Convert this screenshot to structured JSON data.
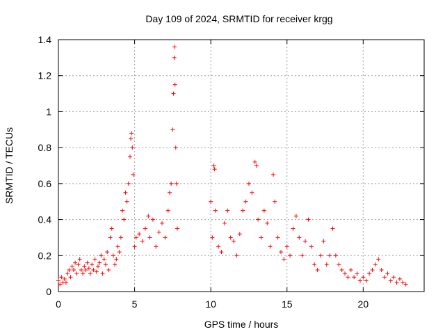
{
  "chart_data": {
    "type": "scatter",
    "title": "Day 109 of 2024, SRMTID for receiver krgg",
    "xlabel": "GPS time / hours",
    "ylabel": "SRMTID / TECUs",
    "xlim": [
      0,
      24
    ],
    "ylim": [
      0,
      1.4
    ],
    "x_ticks": [
      "0",
      "5",
      "10",
      "15",
      "20"
    ],
    "y_ticks": [
      "0",
      "0.2",
      "0.4",
      "0.6",
      "0.8",
      "1",
      "1.2",
      "1.4"
    ],
    "grid": true,
    "marker": "+",
    "series": [
      {
        "name": "SRMTID",
        "color": "#ff0000",
        "points": [
          [
            0.0,
            0.06
          ],
          [
            0.1,
            0.04
          ],
          [
            0.2,
            0.08
          ],
          [
            0.3,
            0.05
          ],
          [
            0.4,
            0.07
          ],
          [
            0.5,
            0.05
          ],
          [
            0.6,
            0.1
          ],
          [
            0.7,
            0.12
          ],
          [
            0.8,
            0.08
          ],
          [
            0.9,
            0.14
          ],
          [
            1.0,
            0.12
          ],
          [
            1.1,
            0.16
          ],
          [
            1.2,
            0.1
          ],
          [
            1.3,
            0.15
          ],
          [
            1.4,
            0.18
          ],
          [
            1.5,
            0.12
          ],
          [
            1.6,
            0.1
          ],
          [
            1.7,
            0.14
          ],
          [
            1.8,
            0.12
          ],
          [
            1.9,
            0.16
          ],
          [
            2.0,
            0.13
          ],
          [
            2.1,
            0.1
          ],
          [
            2.2,
            0.15
          ],
          [
            2.3,
            0.12
          ],
          [
            2.4,
            0.18
          ],
          [
            2.5,
            0.11
          ],
          [
            2.6,
            0.14
          ],
          [
            2.7,
            0.16
          ],
          [
            2.8,
            0.2
          ],
          [
            2.9,
            0.1
          ],
          [
            3.0,
            0.18
          ],
          [
            3.1,
            0.15
          ],
          [
            3.2,
            0.22
          ],
          [
            3.3,
            0.12
          ],
          [
            3.4,
            0.3
          ],
          [
            3.5,
            0.35
          ],
          [
            3.6,
            0.2
          ],
          [
            3.7,
            0.15
          ],
          [
            3.8,
            0.18
          ],
          [
            3.9,
            0.25
          ],
          [
            4.0,
            0.22
          ],
          [
            4.1,
            0.3
          ],
          [
            4.2,
            0.45
          ],
          [
            4.3,
            0.4
          ],
          [
            4.4,
            0.55
          ],
          [
            4.5,
            0.5
          ],
          [
            4.6,
            0.6
          ],
          [
            4.7,
            0.75
          ],
          [
            4.75,
            0.85
          ],
          [
            4.8,
            0.88
          ],
          [
            4.85,
            0.8
          ],
          [
            4.9,
            0.65
          ],
          [
            5.0,
            0.25
          ],
          [
            5.1,
            0.3
          ],
          [
            5.3,
            0.32
          ],
          [
            5.5,
            0.28
          ],
          [
            5.7,
            0.35
          ],
          [
            5.9,
            0.42
          ],
          [
            6.0,
            0.3
          ],
          [
            6.2,
            0.4
          ],
          [
            6.4,
            0.25
          ],
          [
            6.6,
            0.33
          ],
          [
            6.8,
            0.38
          ],
          [
            7.0,
            0.3
          ],
          [
            7.2,
            0.45
          ],
          [
            7.3,
            0.55
          ],
          [
            7.4,
            0.6
          ],
          [
            7.5,
            0.9
          ],
          [
            7.55,
            1.1
          ],
          [
            7.6,
            1.3
          ],
          [
            7.62,
            1.36
          ],
          [
            7.65,
            1.15
          ],
          [
            7.7,
            0.8
          ],
          [
            7.75,
            0.6
          ],
          [
            7.8,
            0.35
          ],
          [
            10.0,
            0.5
          ],
          [
            10.1,
            0.3
          ],
          [
            10.2,
            0.7
          ],
          [
            10.25,
            0.68
          ],
          [
            10.3,
            0.45
          ],
          [
            10.5,
            0.25
          ],
          [
            10.7,
            0.22
          ],
          [
            10.9,
            0.38
          ],
          [
            11.1,
            0.45
          ],
          [
            11.3,
            0.3
          ],
          [
            11.5,
            0.28
          ],
          [
            11.7,
            0.2
          ],
          [
            11.9,
            0.32
          ],
          [
            12.1,
            0.45
          ],
          [
            12.3,
            0.5
          ],
          [
            12.5,
            0.6
          ],
          [
            12.7,
            0.55
          ],
          [
            12.9,
            0.72
          ],
          [
            13.0,
            0.7
          ],
          [
            13.1,
            0.4
          ],
          [
            13.3,
            0.3
          ],
          [
            13.5,
            0.45
          ],
          [
            13.7,
            0.38
          ],
          [
            13.9,
            0.25
          ],
          [
            14.1,
            0.65
          ],
          [
            14.2,
            0.5
          ],
          [
            14.4,
            0.3
          ],
          [
            14.6,
            0.22
          ],
          [
            14.8,
            0.18
          ],
          [
            15.0,
            0.25
          ],
          [
            15.2,
            0.2
          ],
          [
            15.4,
            0.35
          ],
          [
            15.6,
            0.42
          ],
          [
            15.8,
            0.3
          ],
          [
            16.0,
            0.2
          ],
          [
            16.2,
            0.28
          ],
          [
            16.4,
            0.4
          ],
          [
            16.6,
            0.25
          ],
          [
            16.8,
            0.15
          ],
          [
            17.0,
            0.12
          ],
          [
            17.2,
            0.2
          ],
          [
            17.4,
            0.28
          ],
          [
            17.6,
            0.15
          ],
          [
            17.8,
            0.2
          ],
          [
            18.0,
            0.35
          ],
          [
            18.2,
            0.2
          ],
          [
            18.4,
            0.15
          ],
          [
            18.6,
            0.12
          ],
          [
            18.8,
            0.1
          ],
          [
            19.0,
            0.08
          ],
          [
            19.2,
            0.12
          ],
          [
            19.4,
            0.08
          ],
          [
            19.6,
            0.1
          ],
          [
            19.8,
            0.06
          ],
          [
            20.0,
            0.08
          ],
          [
            20.2,
            0.06
          ],
          [
            20.4,
            0.1
          ],
          [
            20.6,
            0.12
          ],
          [
            20.8,
            0.15
          ],
          [
            21.0,
            0.18
          ],
          [
            21.2,
            0.12
          ],
          [
            21.4,
            0.08
          ],
          [
            21.6,
            0.1
          ],
          [
            21.8,
            0.06
          ],
          [
            22.0,
            0.08
          ],
          [
            22.2,
            0.05
          ],
          [
            22.4,
            0.07
          ],
          [
            22.6,
            0.05
          ],
          [
            22.8,
            0.04
          ]
        ]
      }
    ]
  }
}
